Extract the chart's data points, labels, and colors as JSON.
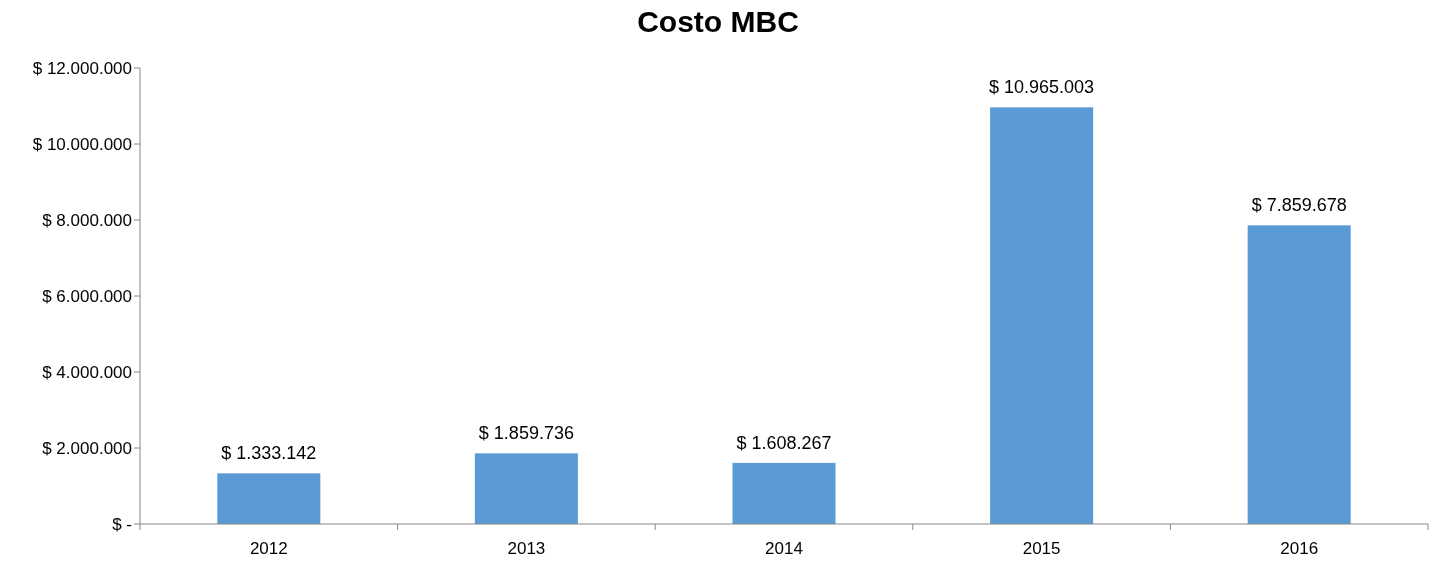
{
  "chart_data": {
    "type": "bar",
    "title": "Costo MBC",
    "categories": [
      "2012",
      "2013",
      "2014",
      "2015",
      "2016"
    ],
    "values": [
      1333142,
      1859736,
      1608267,
      10965003,
      7859678
    ],
    "value_labels": [
      "$ 1.333.142",
      "$ 1.859.736",
      "$ 1.608.267",
      "$ 10.965.003",
      "$ 7.859.678"
    ],
    "color": "#5b9bd5",
    "ylim": [
      0,
      12000000
    ],
    "yticks": [
      {
        "value": 0,
        "label": "$ -"
      },
      {
        "value": 2000000,
        "label": "$ 2.000.000"
      },
      {
        "value": 4000000,
        "label": "$ 4.000.000"
      },
      {
        "value": 6000000,
        "label": "$ 6.000.000"
      },
      {
        "value": 8000000,
        "label": "$ 8.000.000"
      },
      {
        "value": 10000000,
        "label": "$ 10.000.000"
      },
      {
        "value": 12000000,
        "label": "$ 12.000.000"
      }
    ],
    "grid": false
  }
}
